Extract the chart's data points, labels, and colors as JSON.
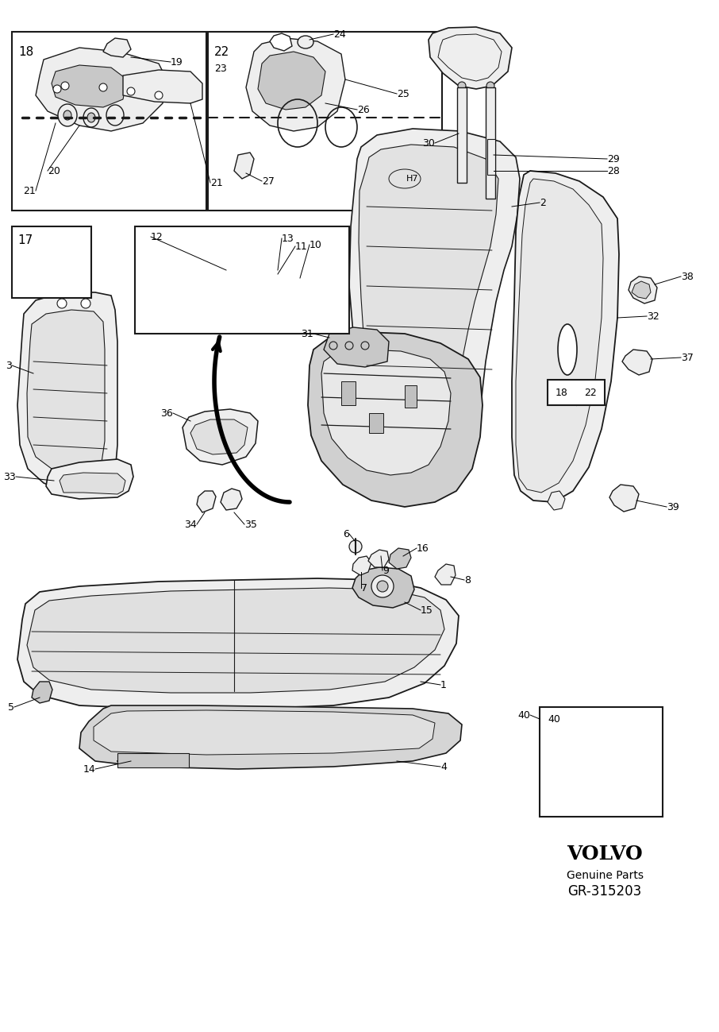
{
  "bg_color": "#ffffff",
  "line_color": "#1a1a1a",
  "fig_width": 9.06,
  "fig_height": 12.99,
  "dpi": 100,
  "volvo_text": "VOLVO",
  "genuine_parts": "Genuine Parts",
  "part_number": "GR-315203",
  "gray_fill": "#d8d8d8",
  "light_gray": "#eeeeee",
  "mid_gray": "#c8c8c8"
}
